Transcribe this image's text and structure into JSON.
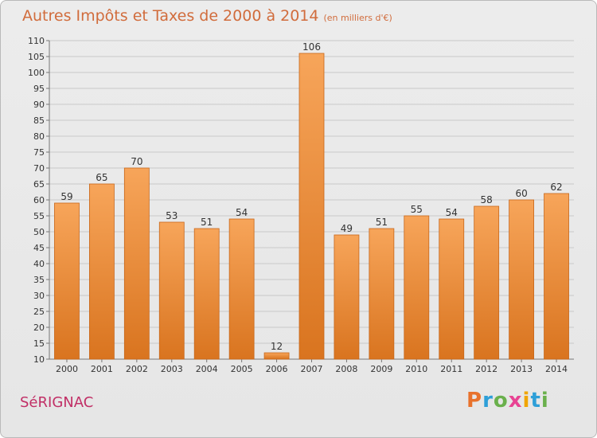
{
  "header": {
    "title": "Autres Impôts et Taxes de 2000 à 2014",
    "subtitle": "(en milliers d'€)"
  },
  "footer": {
    "place": "SéRIGNAC",
    "brand": "Proxiti",
    "brand_colors": [
      "#e8722c",
      "#2e9fd8",
      "#6ab04c",
      "#e84393",
      "#f0a500",
      "#2e9fd8",
      "#6ab04c"
    ]
  },
  "colors": {
    "bar_light": "#f7a55a",
    "bar_dark": "#d9741f",
    "title": "#d16c3c",
    "place": "#c12f66"
  },
  "chart_data": {
    "type": "bar",
    "title": "Autres Impôts et Taxes de 2000 à 2014",
    "subtitle": "(en milliers d'€)",
    "categories": [
      "2000",
      "2001",
      "2002",
      "2003",
      "2004",
      "2005",
      "2006",
      "2007",
      "2008",
      "2009",
      "2010",
      "2011",
      "2012",
      "2013",
      "2014"
    ],
    "values": [
      59,
      65,
      70,
      53,
      51,
      54,
      12,
      106,
      49,
      51,
      55,
      54,
      58,
      60,
      62
    ],
    "ylim": [
      10,
      110
    ],
    "yticks": [
      10,
      15,
      20,
      25,
      30,
      35,
      40,
      45,
      50,
      55,
      60,
      65,
      70,
      75,
      80,
      85,
      90,
      95,
      100,
      105,
      110
    ],
    "grid": true,
    "legend": "none"
  }
}
